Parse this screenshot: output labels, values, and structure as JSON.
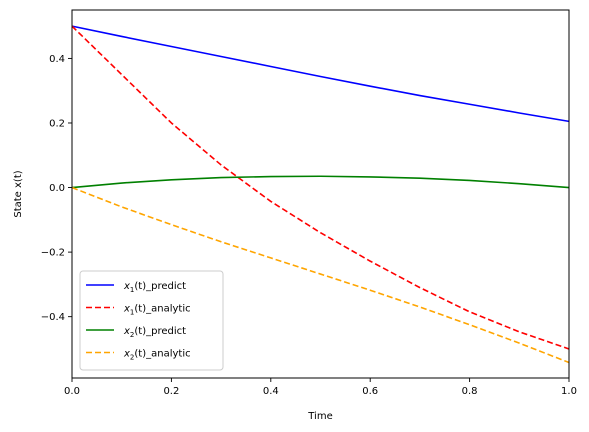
{
  "chart_data": {
    "type": "line",
    "xlabel": "Time",
    "ylabel": "State x(t)",
    "xlim": [
      0,
      1
    ],
    "ylim": [
      -0.59,
      0.55
    ],
    "xticks": [
      0.0,
      0.2,
      0.4,
      0.6,
      0.8,
      1.0
    ],
    "xtick_labels": [
      "0.0",
      "0.2",
      "0.4",
      "0.6",
      "0.8",
      "1.0"
    ],
    "yticks": [
      -0.4,
      -0.2,
      0.0,
      0.2,
      0.4
    ],
    "ytick_labels": [
      "−0.4",
      "−0.2",
      "0.0",
      "0.2",
      "0.4"
    ],
    "grid": false,
    "legend_position": "lower-left",
    "series": [
      {
        "name_sym": "x",
        "name_sub": "1",
        "name_rest": "(t)_predict",
        "color": "#0000ff",
        "dash": "solid",
        "x": [
          0.0,
          0.1,
          0.2,
          0.3,
          0.4,
          0.5,
          0.6,
          0.7,
          0.8,
          0.9,
          1.0
        ],
        "y": [
          0.5,
          0.468,
          0.437,
          0.406,
          0.375,
          0.344,
          0.314,
          0.285,
          0.258,
          0.231,
          0.205
        ]
      },
      {
        "name_sym": "x",
        "name_sub": "1",
        "name_rest": "(t)_analytic",
        "color": "#ff0000",
        "dash": "dashed",
        "x": [
          0.0,
          0.1,
          0.2,
          0.3,
          0.4,
          0.5,
          0.6,
          0.7,
          0.8,
          0.9,
          1.0
        ],
        "y": [
          0.5,
          0.35,
          0.2,
          0.07,
          -0.043,
          -0.14,
          -0.228,
          -0.31,
          -0.385,
          -0.447,
          -0.5
        ]
      },
      {
        "name_sym": "x",
        "name_sub": "2",
        "name_rest": "(t)_predict",
        "color": "#008000",
        "dash": "solid",
        "x": [
          0.0,
          0.1,
          0.2,
          0.3,
          0.4,
          0.5,
          0.6,
          0.7,
          0.8,
          0.9,
          1.0
        ],
        "y": [
          0.0,
          0.014,
          0.024,
          0.031,
          0.034,
          0.035,
          0.033,
          0.029,
          0.022,
          0.012,
          0.0
        ]
      },
      {
        "name_sym": "x",
        "name_sub": "2",
        "name_rest": "(t)_analytic",
        "color": "#ffa500",
        "dash": "dashed",
        "x": [
          0.0,
          0.1,
          0.2,
          0.3,
          0.4,
          0.5,
          0.6,
          0.7,
          0.8,
          0.9,
          1.0
        ],
        "y": [
          0.0,
          -0.06,
          -0.115,
          -0.168,
          -0.218,
          -0.268,
          -0.318,
          -0.37,
          -0.425,
          -0.482,
          -0.542
        ]
      }
    ]
  }
}
